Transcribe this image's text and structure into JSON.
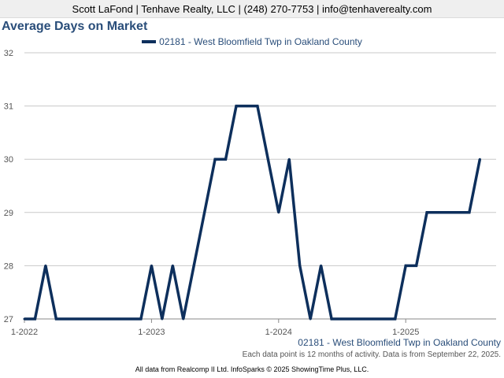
{
  "header": {
    "contact": "Scott LaFond | Tenhave Realty, LLC | (248) 270-7753 | info@tenhaverealty.com"
  },
  "footer": {
    "series_label": "02181 - West Bloomfield Twp in Oakland County",
    "note": "Each data point is 12 months of activity. Data is from September 22, 2025.",
    "credit": "All data from Realcomp II Ltd. InfoSparks © 2025 ShowingTime Plus, LLC."
  },
  "colors": {
    "series": "#0d2f5c",
    "title": "#2a4e7a",
    "grid": "#c8c8c8"
  },
  "chart_data": {
    "type": "line",
    "title": "Average Days on Market",
    "xlabel": "",
    "ylabel": "",
    "ylim": [
      27,
      32
    ],
    "yticks": [
      27,
      28,
      29,
      30,
      31,
      32
    ],
    "xticks": [
      "1-2022",
      "1-2023",
      "1-2024",
      "1-2025"
    ],
    "grid": true,
    "legend_position": "top",
    "x": [
      "2022-01",
      "2022-02",
      "2022-03",
      "2022-04",
      "2022-05",
      "2022-06",
      "2022-07",
      "2022-08",
      "2022-09",
      "2022-10",
      "2022-11",
      "2022-12",
      "2023-01",
      "2023-02",
      "2023-03",
      "2023-04",
      "2023-05",
      "2023-06",
      "2023-07",
      "2023-08",
      "2023-09",
      "2023-10",
      "2023-11",
      "2023-12",
      "2024-01",
      "2024-02",
      "2024-03",
      "2024-04",
      "2024-05",
      "2024-06",
      "2024-07",
      "2024-08",
      "2024-09",
      "2024-10",
      "2024-11",
      "2024-12",
      "2025-01",
      "2025-02",
      "2025-03",
      "2025-04",
      "2025-05",
      "2025-06",
      "2025-07",
      "2025-08"
    ],
    "series": [
      {
        "name": "02181 - West Bloomfield Twp in Oakland County",
        "values": [
          27,
          27,
          28,
          27,
          27,
          27,
          27,
          27,
          27,
          27,
          27,
          27,
          28,
          27,
          28,
          27,
          28,
          29,
          30,
          30,
          31,
          31,
          31,
          30,
          29,
          30,
          28,
          27,
          28,
          27,
          27,
          27,
          27,
          27,
          27,
          27,
          28,
          28,
          29,
          29,
          29,
          29,
          29,
          30
        ]
      }
    ]
  }
}
